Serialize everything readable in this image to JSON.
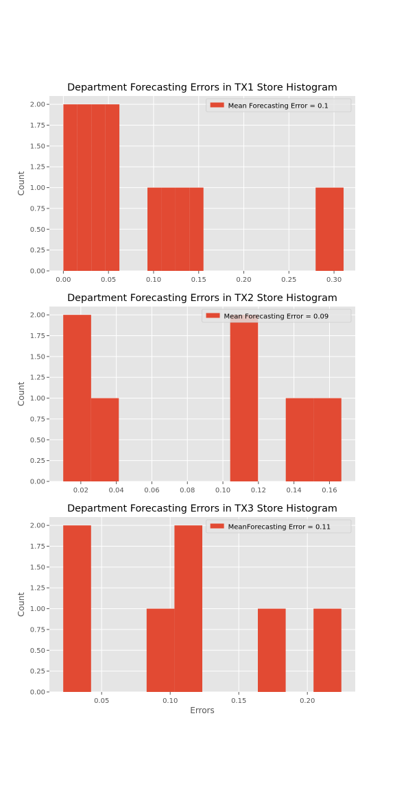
{
  "chart_data": [
    {
      "type": "bar",
      "title": "Department Forecasting Errors in TX1 Store Histogram",
      "xlabel": "",
      "ylabel": "Count",
      "xlim": [
        -0.0155,
        0.3235
      ],
      "ylim": [
        0,
        2.1
      ],
      "xticks": [
        0.0,
        0.05,
        0.1,
        0.15,
        0.2,
        0.25,
        0.3
      ],
      "xtick_labels": [
        "0.00",
        "0.05",
        "0.10",
        "0.15",
        "0.20",
        "0.25",
        "0.30"
      ],
      "yticks": [
        0,
        0.25,
        0.5,
        0.75,
        1.0,
        1.25,
        1.5,
        1.75,
        2.0
      ],
      "ytick_labels": [
        "0.00",
        "0.25",
        "0.50",
        "0.75",
        "1.00",
        "1.25",
        "1.50",
        "1.75",
        "2.00"
      ],
      "bins": [
        {
          "x0": 0.0,
          "x1": 0.0155,
          "count": 2
        },
        {
          "x0": 0.0155,
          "x1": 0.0311,
          "count": 2
        },
        {
          "x0": 0.0311,
          "x1": 0.0466,
          "count": 2
        },
        {
          "x0": 0.0466,
          "x1": 0.0621,
          "count": 2
        },
        {
          "x0": 0.0932,
          "x1": 0.1087,
          "count": 1
        },
        {
          "x0": 0.1087,
          "x1": 0.1243,
          "count": 1
        },
        {
          "x0": 0.1243,
          "x1": 0.1398,
          "count": 1
        },
        {
          "x0": 0.1398,
          "x1": 0.1553,
          "count": 1
        },
        {
          "x0": 0.2796,
          "x1": 0.3106,
          "count": 1
        }
      ],
      "legend": {
        "label": "Mean Forecasting Error = 0.1",
        "position": "upper right"
      },
      "grid": true
    },
    {
      "type": "bar",
      "title": "Department Forecasting Errors in TX2 Store Histogram",
      "xlabel": "",
      "ylabel": "Count",
      "xlim": [
        0.0023,
        0.1745
      ],
      "ylim": [
        0,
        2.1
      ],
      "xticks": [
        0.02,
        0.04,
        0.06,
        0.08,
        0.1,
        0.12,
        0.14,
        0.16
      ],
      "xtick_labels": [
        "0.02",
        "0.04",
        "0.06",
        "0.08",
        "0.10",
        "0.12",
        "0.14",
        "0.16"
      ],
      "yticks": [
        0,
        0.25,
        0.5,
        0.75,
        1.0,
        1.25,
        1.5,
        1.75,
        2.0
      ],
      "ytick_labels": [
        "0.00",
        "0.25",
        "0.50",
        "0.75",
        "1.00",
        "1.25",
        "1.50",
        "1.75",
        "2.00"
      ],
      "bins": [
        {
          "x0": 0.0101,
          "x1": 0.0258,
          "count": 2
        },
        {
          "x0": 0.0258,
          "x1": 0.0414,
          "count": 1
        },
        {
          "x0": 0.1041,
          "x1": 0.1198,
          "count": 2
        },
        {
          "x0": 0.1354,
          "x1": 0.1511,
          "count": 1
        },
        {
          "x0": 0.1511,
          "x1": 0.1667,
          "count": 1
        }
      ],
      "legend": {
        "label": "Mean Forecasting Error = 0.09",
        "position": "upper right"
      },
      "grid": true
    },
    {
      "type": "bar",
      "title": "Department Forecasting Errors in TX3 Store Histogram",
      "xlabel": "Errors",
      "ylabel": "Count",
      "xlim": [
        0.0119,
        0.2349
      ],
      "ylim": [
        0,
        2.1
      ],
      "xticks": [
        0.05,
        0.1,
        0.15,
        0.2
      ],
      "xtick_labels": [
        "0.05",
        "0.10",
        "0.15",
        "0.20"
      ],
      "yticks": [
        0,
        0.25,
        0.5,
        0.75,
        1.0,
        1.25,
        1.5,
        1.75,
        2.0
      ],
      "ytick_labels": [
        "0.00",
        "0.25",
        "0.50",
        "0.75",
        "1.00",
        "1.25",
        "1.50",
        "1.75",
        "2.00"
      ],
      "bins": [
        {
          "x0": 0.022,
          "x1": 0.0423,
          "count": 2
        },
        {
          "x0": 0.0828,
          "x1": 0.1031,
          "count": 1
        },
        {
          "x0": 0.1031,
          "x1": 0.1234,
          "count": 2
        },
        {
          "x0": 0.1639,
          "x1": 0.1842,
          "count": 1
        },
        {
          "x0": 0.2045,
          "x1": 0.2248,
          "count": 1
        }
      ],
      "legend": {
        "label": "MeanForecasting Error = 0.11",
        "position": "upper right"
      },
      "grid": true
    }
  ],
  "colors": {
    "bar": "#e24a33",
    "plot_background": "#e5e5e5",
    "grid": "#ffffff",
    "text": "#000000",
    "tick_text": "#555555",
    "label_text": "#555555"
  }
}
